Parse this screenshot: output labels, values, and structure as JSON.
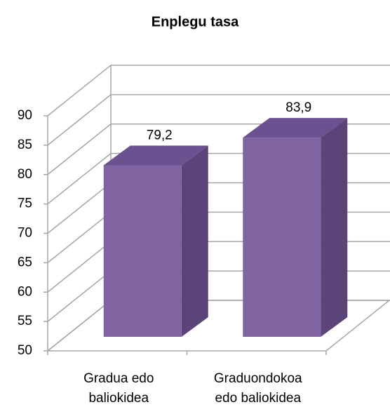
{
  "chart_data": {
    "type": "bar3d",
    "title": "Enplegu tasa",
    "categories": [
      "Gradua edo baliokidea",
      "Graduondokoa edo baliokidea"
    ],
    "values": [
      79.2,
      83.9
    ],
    "value_labels": [
      "79,2",
      "83,9"
    ],
    "color": "#8064a2",
    "ylim": [
      50,
      90
    ],
    "yticks": [
      50,
      55,
      60,
      65,
      70,
      75,
      80,
      85,
      90
    ],
    "grid": true
  }
}
